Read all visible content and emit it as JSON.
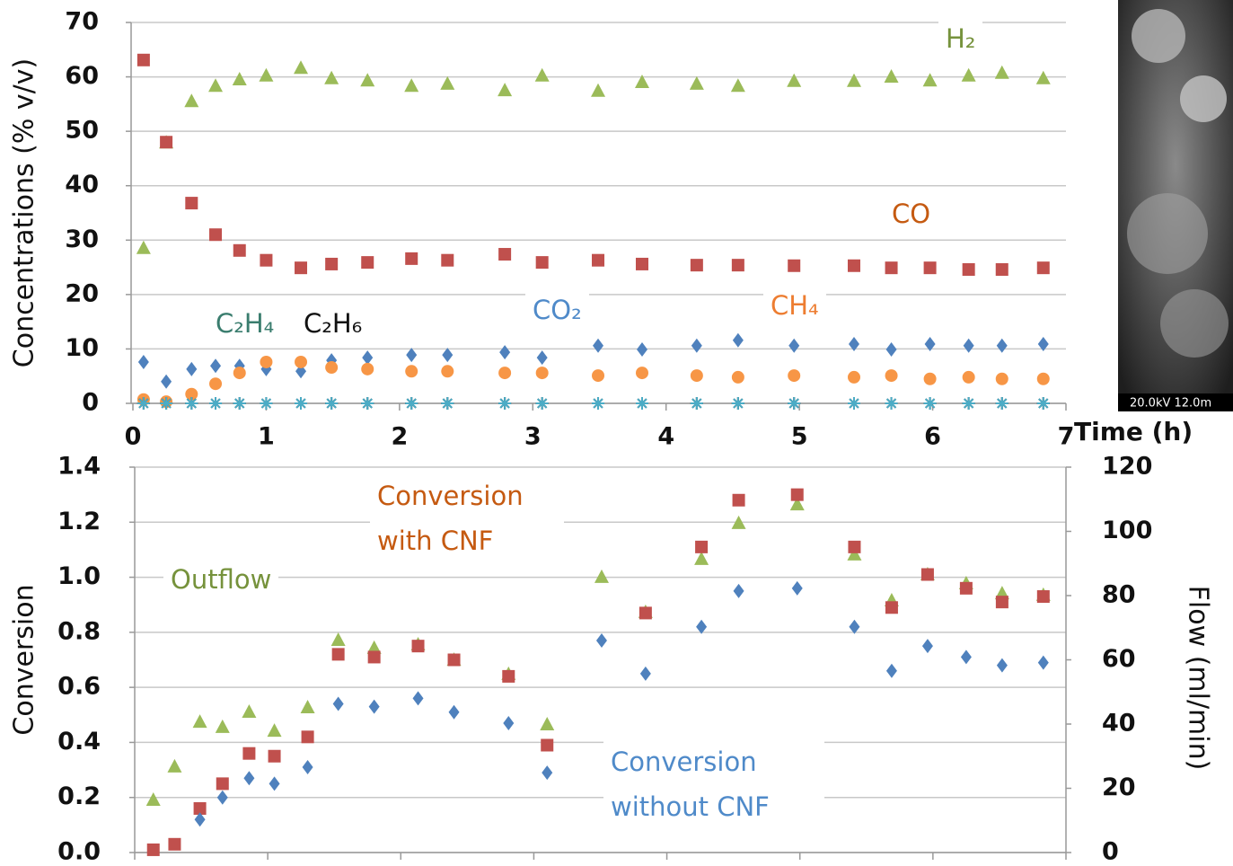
{
  "chart_data": [
    {
      "type": "scatter",
      "x_label": "Time (h)",
      "y_label": "Concentrations (% v/v)",
      "xlim": [
        0,
        7
      ],
      "xticks": [
        0,
        1,
        2,
        3,
        4,
        5,
        6,
        7
      ],
      "ylim": [
        0,
        70
      ],
      "yticks": [
        0,
        10,
        20,
        30,
        40,
        50,
        60,
        70
      ],
      "grid": true,
      "x": [
        0.08,
        0.25,
        0.44,
        0.62,
        0.8,
        1.0,
        1.26,
        1.49,
        1.76,
        2.09,
        2.36,
        2.79,
        3.07,
        3.49,
        3.82,
        4.23,
        4.54,
        4.96,
        5.41,
        5.69,
        5.98,
        6.27,
        6.52,
        6.83
      ],
      "series": [
        {
          "name": "H₂",
          "color": "#9bbb59",
          "label_color": "#76923c",
          "marker": "triangle",
          "values": [
            28.6,
            48,
            55.6,
            58.4,
            59.6,
            60.3,
            61.7,
            59.8,
            59.4,
            58.4,
            58.8,
            57.6,
            60.3,
            57.5,
            59.1,
            58.8,
            58.4,
            59.3,
            59.3,
            60.1,
            59.4,
            60.3,
            60.8,
            59.8
          ]
        },
        {
          "name": "CO",
          "color": "#c0504d",
          "label_color": "#c55a11",
          "marker": "square",
          "values": [
            63.1,
            48,
            36.8,
            31,
            28.1,
            26.3,
            24.9,
            25.6,
            25.9,
            26.6,
            26.3,
            27.4,
            25.9,
            26.3,
            25.6,
            25.4,
            25.4,
            25.3,
            25.3,
            24.9,
            24.9,
            24.6,
            24.6,
            24.9
          ]
        },
        {
          "name": "CO₂",
          "color": "#4f81bd",
          "label_color": "#4f8ac9",
          "marker": "diamond",
          "values": [
            7.6,
            4,
            6.3,
            6.9,
            6.9,
            6.3,
            5.9,
            7.9,
            8.4,
            8.9,
            8.9,
            9.4,
            8.4,
            10.6,
            9.9,
            10.6,
            11.6,
            10.6,
            10.9,
            9.9,
            10.9,
            10.6,
            10.6,
            10.9
          ]
        },
        {
          "name": "CH₄",
          "color": "#f79646",
          "label_color": "#ed7d31",
          "marker": "circle",
          "values": [
            0.7,
            0.3,
            1.7,
            3.6,
            5.6,
            7.6,
            7.6,
            6.6,
            6.3,
            5.9,
            5.9,
            5.6,
            5.6,
            5.1,
            5.6,
            5.1,
            4.8,
            5.1,
            4.8,
            5.1,
            4.5,
            4.8,
            4.5,
            4.5
          ]
        },
        {
          "name": "C₂H₆",
          "color": "#1f1f1f",
          "label_color": "#111111",
          "marker": "asterisk",
          "values": [
            0,
            0,
            0,
            0,
            0,
            0,
            0,
            0,
            0,
            0,
            0,
            0,
            0,
            0,
            0,
            0,
            0,
            0,
            0,
            0,
            0,
            0,
            0,
            0
          ]
        },
        {
          "name": "C₂H₄",
          "color": "#4bacc6",
          "label_color": "#3a7d6e",
          "marker": "asterisk",
          "values": [
            0,
            0,
            0,
            0,
            0,
            0,
            0,
            0,
            0,
            0,
            0,
            0,
            0,
            0,
            0,
            0,
            0,
            0,
            0,
            0,
            0,
            0,
            0,
            0
          ]
        }
      ]
    },
    {
      "type": "scatter",
      "y_label": "Conversion",
      "y2_label": "Flow (ml/min)",
      "xlim": [
        0,
        7
      ],
      "xticks": [
        0,
        1,
        2,
        3,
        4,
        5,
        6,
        7
      ],
      "ylim": [
        0,
        1.4
      ],
      "yticks": [
        {
          "value": 0,
          "label": "0.0"
        },
        0.2,
        0.4,
        0.6,
        0.8,
        {
          "value": 1,
          "label": "1.0"
        },
        1.2,
        1.4
      ],
      "y2lim": [
        0,
        120
      ],
      "y2ticks": [
        0,
        20,
        40,
        60,
        80,
        100,
        120
      ],
      "grid": true,
      "x": [
        0.14,
        0.3,
        0.49,
        0.66,
        0.86,
        1.05,
        1.3,
        1.53,
        1.8,
        2.13,
        2.4,
        2.81,
        3.1,
        3.51,
        3.84,
        4.26,
        4.54,
        4.98,
        5.41,
        5.69,
        5.96,
        6.25,
        6.52,
        6.83
      ],
      "series": [
        {
          "name": "Outflow",
          "color": "#9bbb59",
          "label_color": "#76923c",
          "marker": "triangle",
          "axis": "y2",
          "values": [
            16.5,
            26.9,
            40.8,
            39.2,
            43.9,
            38,
            45.3,
            66.3,
            63.8,
            64.9,
            60.1,
            55.7,
            40,
            85.9,
            75,
            91.5,
            102.7,
            108.5,
            92.9,
            78.6,
            86.7,
            83.9,
            80.8,
            80.3
          ]
        },
        {
          "name": "Conversion with CNF",
          "color": "#c0504d",
          "label_color": "#c55a11",
          "marker": "square",
          "values": [
            0.01,
            0.03,
            0.16,
            0.25,
            0.36,
            0.35,
            0.42,
            0.72,
            0.71,
            0.75,
            0.7,
            0.64,
            0.39,
            null,
            0.87,
            1.11,
            1.28,
            1.3,
            1.11,
            0.89,
            1.01,
            0.96,
            0.91,
            0.93
          ]
        },
        {
          "name": "Conversion without CNF",
          "color": "#4f81bd",
          "label_color": "#4f8ac9",
          "marker": "diamond",
          "values": [
            null,
            null,
            0.12,
            0.2,
            0.27,
            0.25,
            0.31,
            0.54,
            0.53,
            0.56,
            0.51,
            0.47,
            0.29,
            0.77,
            0.65,
            0.82,
            0.95,
            0.96,
            0.82,
            0.66,
            0.75,
            0.71,
            0.68,
            0.69
          ]
        }
      ]
    }
  ],
  "image": {
    "caption": "20.0kV 12.0m"
  }
}
